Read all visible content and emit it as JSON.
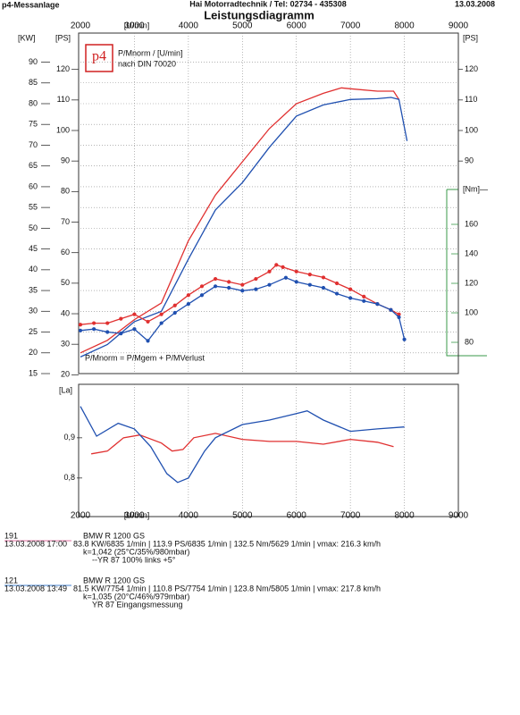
{
  "header": {
    "left": "p4-Messanlage",
    "center": "Hai Motorradtechnik  /  Tel: 02734 - 435308",
    "date": "13.03.2008"
  },
  "chart_data": [
    {
      "type": "line",
      "title": "Leistungsdiagramm",
      "x_label": "[U/min]",
      "y_label": "[KW]",
      "y2_label": "[PS]",
      "y3_label": "[Nm]—",
      "logo": "p4",
      "legend_lines": [
        "P/Mnorm / [U/min]",
        "nach DIN 70020"
      ],
      "annotation": "P/Mnorm = P/Mgem + P/MVerlust",
      "xlim": [
        2000,
        9000
      ],
      "xticks": [
        2000,
        3000,
        4000,
        5000,
        6000,
        7000,
        8000,
        9000
      ],
      "ylim": [
        15,
        97
      ],
      "yticks": [
        15,
        20,
        25,
        30,
        35,
        40,
        45,
        50,
        55,
        60,
        65,
        70,
        75,
        80,
        85,
        90
      ],
      "y2lim": [
        20.4,
        131.9
      ],
      "y2ticks": [
        20,
        30,
        40,
        50,
        60,
        70,
        80,
        90,
        100,
        110,
        120
      ],
      "y2ticks_right": [
        90,
        100,
        110,
        120
      ],
      "y3lim": [
        58.8,
        289.7
      ],
      "y3ticks": [
        80,
        100,
        120,
        140,
        160
      ],
      "grid": true,
      "series": [
        {
          "color": "#e03030",
          "axis": "y",
          "x": [
            2000,
            2500,
            3000,
            3500,
            4000,
            4500,
            5000,
            5500,
            6000,
            6500,
            6835,
            7000,
            7500,
            7800,
            7900
          ],
          "values": [
            20,
            23,
            28,
            32,
            47,
            58,
            66,
            74,
            80,
            82.5,
            83.8,
            83.6,
            83,
            83,
            81
          ]
        },
        {
          "color": "#2050b0",
          "axis": "y",
          "x": [
            2000,
            2500,
            3000,
            3500,
            4000,
            4500,
            5000,
            5500,
            6000,
            6500,
            7000,
            7500,
            7754,
            7900,
            8050
          ],
          "values": [
            19,
            22,
            27.5,
            30,
            42.6,
            54.4,
            61,
            69.5,
            77,
            79.7,
            81,
            81.2,
            81.5,
            81,
            71
          ]
        },
        {
          "color": "#e03030",
          "axis": "y3",
          "markers": true,
          "x": [
            2000,
            2250,
            2500,
            2750,
            3000,
            3250,
            3500,
            3750,
            4000,
            4250,
            4500,
            4750,
            5000,
            5250,
            5500,
            5629,
            5750,
            6000,
            6250,
            6500,
            6750,
            7000,
            7250,
            7500,
            7750,
            7900
          ],
          "values": [
            92,
            93,
            93,
            96,
            99,
            94,
            99,
            105,
            112,
            118,
            123,
            121,
            119,
            123,
            128,
            132.5,
            131,
            128,
            126,
            124,
            120,
            116,
            111,
            106,
            102,
            99
          ]
        },
        {
          "color": "#2050b0",
          "axis": "y3",
          "markers": true,
          "x": [
            2000,
            2250,
            2500,
            2750,
            3000,
            3250,
            3500,
            3750,
            4000,
            4250,
            4500,
            4750,
            5000,
            5250,
            5500,
            5805,
            6000,
            6250,
            6500,
            6750,
            7000,
            7250,
            7500,
            7750,
            7900,
            8000
          ],
          "values": [
            88,
            89,
            87,
            86,
            89,
            81,
            93,
            100,
            106,
            112,
            118,
            117,
            115,
            116,
            119,
            123.8,
            121,
            119,
            117,
            113,
            110,
            108,
            106,
            102,
            97,
            82
          ]
        }
      ]
    },
    {
      "type": "line",
      "x_label": "[U/min]",
      "y_label": "[La]",
      "xlim": [
        2000,
        9000
      ],
      "xticks": [
        2000,
        3000,
        4000,
        5000,
        6000,
        7000,
        8000,
        9000
      ],
      "ylim": [
        0.704,
        1.033
      ],
      "yticks": [
        {
          "value": 0.8,
          "label": "0,8"
        },
        {
          "value": 0.9,
          "label": "0,9"
        }
      ],
      "series": [
        {
          "color": "#e03030",
          "x": [
            2200,
            2500,
            2800,
            3100,
            3500,
            3700,
            3900,
            4100,
            4500,
            5000,
            5500,
            6000,
            6500,
            7000,
            7500,
            7800
          ],
          "values": [
            0.86,
            0.867,
            0.9,
            0.907,
            0.887,
            0.867,
            0.871,
            0.9,
            0.911,
            0.896,
            0.891,
            0.891,
            0.884,
            0.896,
            0.889,
            0.878
          ]
        },
        {
          "color": "#2050b0",
          "x": [
            2000,
            2300,
            2700,
            3000,
            3300,
            3600,
            3800,
            4000,
            4300,
            4500,
            5000,
            5500,
            6000,
            6200,
            6500,
            7000,
            7500,
            8000
          ],
          "values": [
            0.978,
            0.904,
            0.936,
            0.922,
            0.878,
            0.811,
            0.789,
            0.8,
            0.867,
            0.9,
            0.933,
            0.944,
            0.96,
            0.967,
            0.944,
            0.916,
            0.922,
            0.927
          ]
        }
      ]
    }
  ],
  "runs": [
    {
      "id": "191",
      "model": "BMW R 1200 GS",
      "date_time": "13.03.2008  17:00",
      "stats": "83.8 KW/6835 1/min  |  113.9 PS/6835 1/min  |  132.5 Nm/5629 1/min  |  vmax: 216.3 km/h",
      "k": "k=1,042 (25°C/35%/980mbar)",
      "note": "--YR 87 100% links +5°"
    },
    {
      "id": "121",
      "model": "BMW R 1200 GS",
      "date_time": "13.03.2008  13:49",
      "stats": "81.5 KW/7754 1/min  |  110.8 PS/7754 1/min  |  123.8 Nm/5805 1/min  |  vmax: 217.8 km/h",
      "k": "k=1,035 (20°C/46%/979mbar)",
      "note": "YR 87 Eingangsmessung"
    }
  ]
}
